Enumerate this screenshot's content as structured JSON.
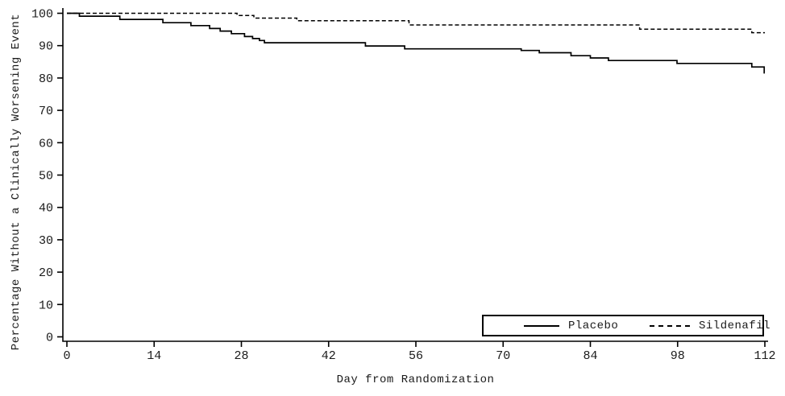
{
  "chart_data": {
    "type": "line",
    "subtype": "kaplan-meier-step",
    "title": "",
    "xlabel": "Day from Randomization",
    "ylabel": "Percentage Without a Clinically Worsening Event",
    "xlim": [
      0,
      112
    ],
    "ylim": [
      0,
      100
    ],
    "xticks": [
      0,
      14,
      28,
      42,
      56,
      70,
      84,
      98,
      112
    ],
    "yticks": [
      0,
      10,
      20,
      30,
      40,
      50,
      60,
      70,
      80,
      90,
      100
    ],
    "grid": false,
    "legend_position": "bottom-right-inside",
    "series": [
      {
        "name": "Placebo",
        "line_style": "solid",
        "color": "#000000",
        "end_day": 112,
        "points": [
          [
            0,
            100
          ],
          [
            2,
            99.1
          ],
          [
            8.5,
            98.1
          ],
          [
            15.4,
            97.1
          ],
          [
            19.9,
            96.2
          ],
          [
            22.9,
            95.3
          ],
          [
            24.6,
            94.5
          ],
          [
            26.4,
            93.7
          ],
          [
            28.5,
            92.8
          ],
          [
            29.8,
            92.2
          ],
          [
            30.9,
            91.6
          ],
          [
            31.7,
            90.9
          ],
          [
            47.9,
            89.9
          ],
          [
            54.2,
            89.0
          ],
          [
            72.9,
            88.5
          ],
          [
            75.8,
            87.8
          ],
          [
            80.9,
            86.9
          ],
          [
            84,
            86.2
          ],
          [
            86.9,
            85.4
          ],
          [
            97.9,
            84.5
          ],
          [
            109.9,
            83.4
          ],
          [
            111.9,
            81.6
          ]
        ]
      },
      {
        "name": "Sildenafil",
        "line_style": "dashed",
        "color": "#000000",
        "end_day": 112,
        "points": [
          [
            0,
            100
          ],
          [
            27.3,
            99.3
          ],
          [
            30,
            98.5
          ],
          [
            36.9,
            97.7
          ],
          [
            54.9,
            96.4
          ],
          [
            91.9,
            95.1
          ],
          [
            109.9,
            94.0
          ]
        ]
      }
    ]
  },
  "legend": {
    "items": [
      {
        "label": "Placebo",
        "sample": "solid-line"
      },
      {
        "label": "Sildenafil",
        "sample": "dashed-line"
      }
    ]
  },
  "colors": {
    "line": "#000000",
    "text": "#1a1a1a",
    "background": "#ffffff"
  }
}
